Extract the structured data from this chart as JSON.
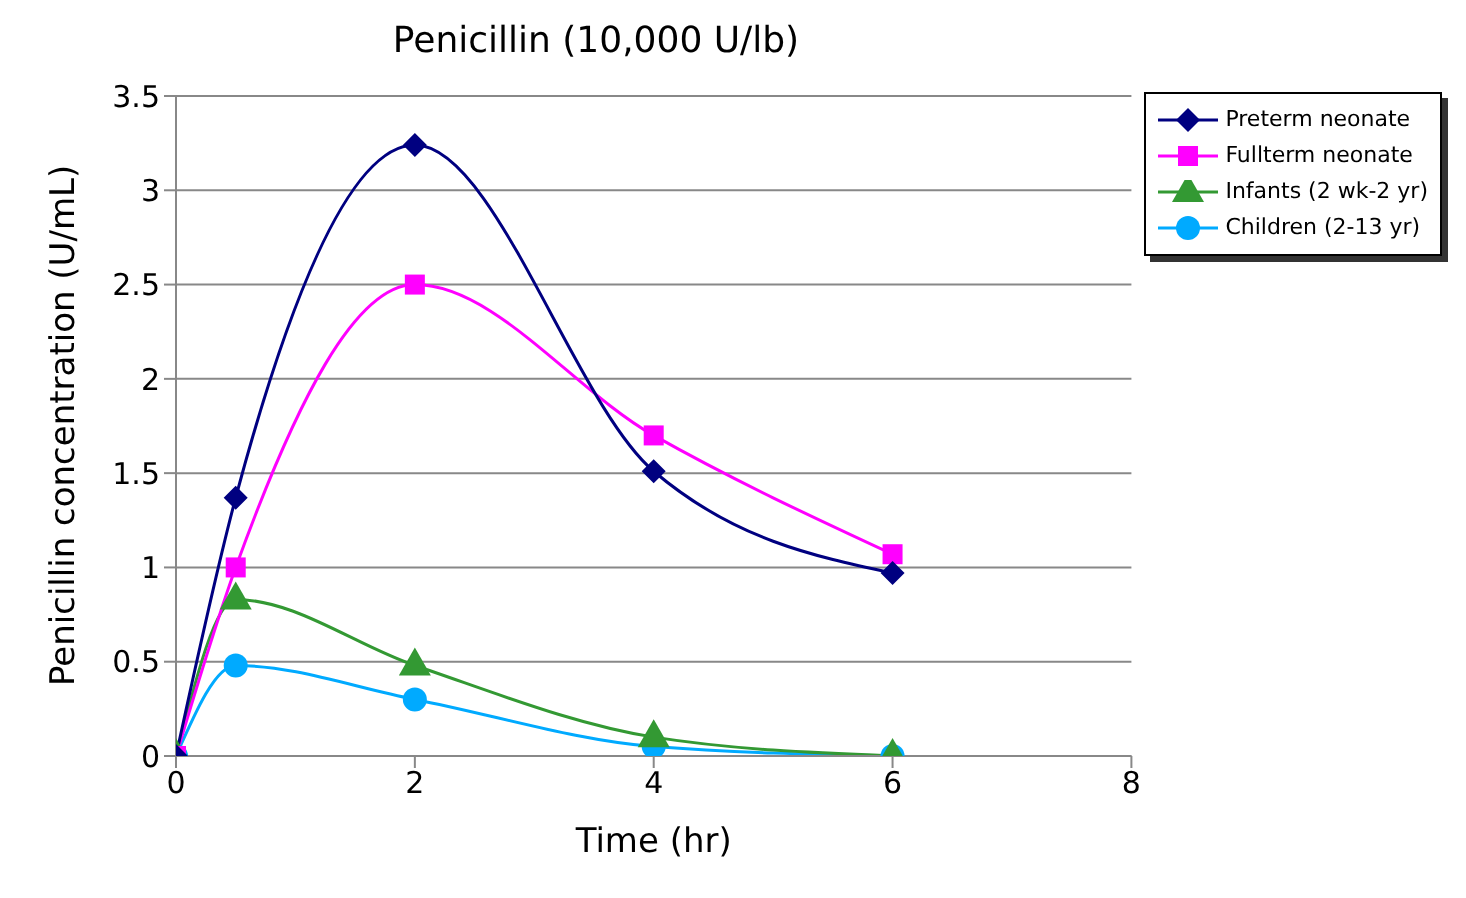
{
  "chart_data": {
    "type": "line",
    "title": "Penicillin (10,000 U/lb)",
    "xlabel": "Time (hr)",
    "ylabel": "Penicillin concentration (U/mL)",
    "x": [
      0,
      0.5,
      2,
      4,
      6
    ],
    "series": [
      {
        "name": "Preterm neonate",
        "color": "#000080",
        "marker": "diamond",
        "values": [
          0,
          1.37,
          3.24,
          1.51,
          0.97
        ]
      },
      {
        "name": "Fullterm neonate",
        "color": "#ff00ff",
        "marker": "square",
        "values": [
          0,
          1.0,
          2.5,
          1.7,
          1.07
        ]
      },
      {
        "name": "Infants (2 wk-2 yr)",
        "color": "#339933",
        "marker": "triangle",
        "values": [
          0,
          0.83,
          0.48,
          0.1,
          0
        ]
      },
      {
        "name": "Children (2-13 yr)",
        "color": "#00aaff",
        "marker": "circle",
        "values": [
          0,
          0.48,
          0.3,
          0.05,
          0
        ]
      }
    ],
    "xlim": [
      0,
      8
    ],
    "xticks": [
      0,
      2,
      4,
      6,
      8
    ],
    "ylim": [
      0,
      3.5
    ],
    "yticks": [
      0,
      0.5,
      1,
      1.5,
      2,
      2.5,
      3,
      3.5
    ],
    "grid": "y",
    "legend": "right",
    "line_style": "solid"
  }
}
